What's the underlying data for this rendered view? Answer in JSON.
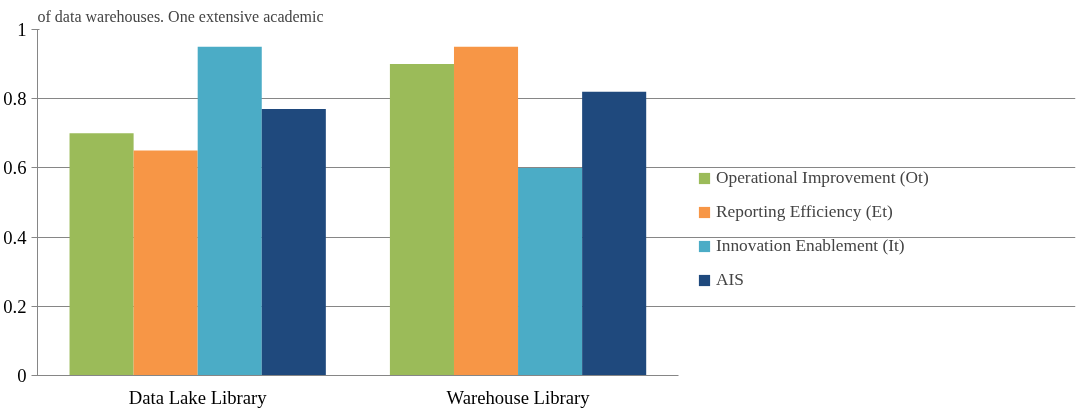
{
  "chart_data": {
    "type": "bar",
    "categories": [
      "Data Lake Library",
      "Warehouse Library"
    ],
    "series": [
      {
        "name": "Operational Improvement (Ot)",
        "color": "#9bbb59",
        "values": [
          0.7,
          0.9
        ]
      },
      {
        "name": "Reporting Efficiency (Et)",
        "color": "#f79646",
        "values": [
          0.65,
          0.95
        ]
      },
      {
        "name": "Innovation Enablement (It)",
        "color": "#4bacc6",
        "values": [
          0.95,
          0.6
        ]
      },
      {
        "name": "AIS",
        "color": "#1f497d",
        "values": [
          0.77,
          0.82
        ]
      }
    ],
    "ylim": [
      0,
      1
    ],
    "yticks": [
      0,
      0.2,
      0.4,
      0.6,
      0.8,
      1
    ],
    "grid": "y",
    "legend": "right",
    "annotations": [
      "of data warehouses. One extensive academic"
    ]
  }
}
